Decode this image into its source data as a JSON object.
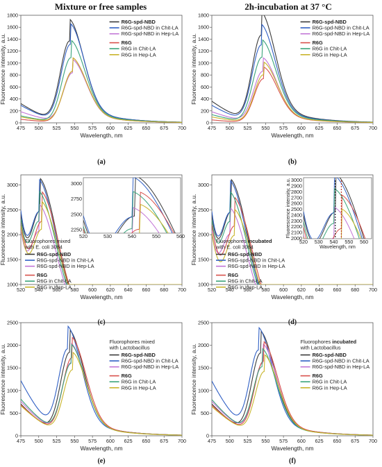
{
  "titles": {
    "left": "Mixture or free samples",
    "right": "2h-incubation at 37 °C"
  },
  "colors": {
    "R6G-spd-NBD": "#3a3a3a",
    "R6G-spd-NBD in Chit-LA": "#2f5fc4",
    "R6G-spd-NBD in Hep-LA": "#c274d6",
    "R6G": "#d8504b",
    "R6G in Chit-LA": "#3aa37a",
    "R6G in Hep-LA": "#c8b42a"
  },
  "chart_data": [
    {
      "type": "line",
      "panel": "a",
      "caption": "(a)",
      "xlabel": "Wavelength, nm",
      "ylabel": "Fluorescence intensity, a.u.",
      "xlim": [
        475,
        700
      ],
      "ylim": [
        0,
        1800
      ],
      "xticks": [
        475,
        500,
        525,
        550,
        575,
        600,
        625,
        650,
        675,
        700
      ],
      "yticks": [
        0,
        200,
        400,
        600,
        800,
        1000,
        1200,
        1400,
        1600,
        1800
      ],
      "legend_groups": [
        [
          "R6G-spd-NBD",
          "R6G-spd-NBD in Chit-LA",
          "R6G-spd-NBD in Hep-LA"
        ],
        [
          "R6G",
          "R6G in Chit-LA",
          "R6G in Hep-LA"
        ]
      ],
      "legend_bold": [
        "R6G-spd-NBD",
        "R6G"
      ],
      "series": [
        {
          "name": "R6G-spd-NBD",
          "peak": 1670,
          "peak_x": 543,
          "base": 330
        },
        {
          "name": "R6G-spd-NBD in Chit-LA",
          "peak": 1600,
          "peak_x": 544,
          "base": 300
        },
        {
          "name": "R6G-spd-NBD in Hep-LA",
          "peak": 1020,
          "peak_x": 547,
          "base": 190
        },
        {
          "name": "R6G",
          "peak": 1050,
          "peak_x": 547,
          "base": 60
        },
        {
          "name": "R6G in Chit-LA",
          "peak": 1330,
          "peak_x": 545,
          "base": 120
        },
        {
          "name": "R6G in Hep-LA",
          "peak": 1050,
          "peak_x": 547,
          "base": 100
        }
      ]
    },
    {
      "type": "line",
      "panel": "b",
      "caption": "(b)",
      "xlabel": "Wavelength, nm",
      "ylabel": "Fluorescence intensity, a.u.",
      "xlim": [
        475,
        700
      ],
      "ylim": [
        0,
        1800
      ],
      "xticks": [
        475,
        500,
        525,
        550,
        575,
        600,
        625,
        650,
        675,
        700
      ],
      "yticks": [
        0,
        200,
        400,
        600,
        800,
        1000,
        1200,
        1400,
        1600,
        1800
      ],
      "legend_groups": [
        [
          "R6G-spd-NBD",
          "R6G-spd-NBD in Chit-LA",
          "R6G-spd-NBD in Hep-LA"
        ],
        [
          "R6G",
          "R6G in Chit-LA",
          "R6G in Hep-LA"
        ]
      ],
      "legend_bold": [
        "R6G-spd-NBD",
        "R6G"
      ],
      "series": [
        {
          "name": "R6G-spd-NBD",
          "peak": 1790,
          "peak_x": 544,
          "base": 370
        },
        {
          "name": "R6G-spd-NBD in Chit-LA",
          "peak": 1590,
          "peak_x": 544,
          "base": 300
        },
        {
          "name": "R6G-spd-NBD in Hep-LA",
          "peak": 1050,
          "peak_x": 546,
          "base": 190
        },
        {
          "name": "R6G",
          "peak": 900,
          "peak_x": 547,
          "base": 50
        },
        {
          "name": "R6G in Chit-LA",
          "peak": 1340,
          "peak_x": 545,
          "base": 140
        },
        {
          "name": "R6G in Hep-LA",
          "peak": 980,
          "peak_x": 547,
          "base": 100
        }
      ]
    },
    {
      "type": "line",
      "panel": "c",
      "caption": "(c)",
      "xlabel": "Wavelength, nm",
      "ylabel": "Fluorescence intensity, a.u.",
      "xlim": [
        520,
        700
      ],
      "ylim": [
        1000,
        3200
      ],
      "xticks": [
        520,
        540,
        560,
        580,
        600,
        620,
        640,
        660,
        680,
        700
      ],
      "yticks": [
        1000,
        1500,
        2000,
        2500,
        3000
      ],
      "note": [
        "Fluorophores mixed",
        "with E. coli 3084"
      ],
      "legend_groups": [
        [
          "R6G-spd-NBD",
          "R6G-spd-NBD in Chit-LA",
          "R6G-spd-NBD in Hep-LA"
        ],
        [
          "R6G",
          "R6G in Chit-LA",
          "R6G in Hep-LA"
        ]
      ],
      "legend_bold": [
        "R6G-spd-NBD",
        "R6G"
      ],
      "series": [
        {
          "name": "R6G-spd-NBD",
          "peak": 3020,
          "peak_x": 541,
          "base": 2570
        },
        {
          "name": "R6G-spd-NBD in Chit-LA",
          "peak": 3000,
          "peak_x": 540,
          "base": 2700
        },
        {
          "name": "R6G-spd-NBD in Hep-LA",
          "peak": 2520,
          "peak_x": 540,
          "base": 2300
        },
        {
          "name": "R6G",
          "peak": 2760,
          "peak_x": 543,
          "base": 2430
        },
        {
          "name": "R6G in Chit-LA",
          "peak": 2770,
          "peak_x": 540,
          "base": 2520
        },
        {
          "name": "R6G in Hep-LA",
          "peak": 2570,
          "peak_x": 543,
          "base": 2350
        }
      ],
      "inset": {
        "xlim": [
          520,
          560
        ],
        "ylim": [
          2200,
          3100
        ],
        "xticks": [
          520,
          530,
          540,
          550,
          560
        ],
        "yticks": [
          2250,
          2500,
          2750,
          3000
        ]
      }
    },
    {
      "type": "line",
      "panel": "d",
      "caption": "(d)",
      "xlabel": "Wavelength, nm",
      "ylabel": "Fluorescence intensity, a.u.",
      "xlim": [
        520,
        700
      ],
      "ylim": [
        1000,
        3200
      ],
      "xticks": [
        520,
        540,
        560,
        580,
        600,
        620,
        640,
        660,
        680,
        700
      ],
      "yticks": [
        1000,
        1500,
        2000,
        2500,
        3000
      ],
      "note": [
        "Fluorophores ",
        "incubated",
        "with E. coli 3084"
      ],
      "legend_groups": [
        [
          "R6G-spd-NBD",
          "R6G-spd-NBD in Chit-LA",
          "R6G-spd-NBD in Hep-LA"
        ],
        [
          "R6G",
          "R6G in Chit-LA",
          "R6G in Hep-LA"
        ]
      ],
      "legend_bold": [
        "R6G-spd-NBD",
        "R6G"
      ],
      "series": [
        {
          "name": "R6G-spd-NBD",
          "peak": 3000,
          "peak_x": 541,
          "base": 2560
        },
        {
          "name": "R6G-spd-NBD in Chit-LA",
          "peak": 2980,
          "peak_x": 540,
          "base": 2680
        },
        {
          "name": "R6G-spd-NBD in Hep-LA",
          "peak": 2450,
          "peak_x": 540,
          "base": 2260
        },
        {
          "name": "R6G",
          "peak": 2650,
          "peak_x": 545,
          "base": 2350
        },
        {
          "name": "R6G in Chit-LA",
          "peak": 2760,
          "peak_x": 540,
          "base": 2500
        },
        {
          "name": "R6G in Hep-LA",
          "peak": 2420,
          "peak_x": 545,
          "base": 2170
        }
      ],
      "inset": {
        "xlim": [
          520,
          565
        ],
        "ylim": [
          2000,
          3050
        ],
        "xticks": [
          520,
          530,
          540,
          550,
          560
        ],
        "yticks": [
          2000,
          2100,
          2200,
          2300,
          2400,
          2500,
          2600,
          2700,
          2800,
          2900,
          3000
        ],
        "xlabel": "Wavelength, nm",
        "ylabel": "Fluorescence intensity, a.u.",
        "markers": [
          541,
          545
        ]
      }
    },
    {
      "type": "line",
      "panel": "e",
      "caption": "(e)",
      "xlabel": "Wavelength, nm",
      "ylabel": "Fluorescence intensity, a.u.",
      "xlim": [
        475,
        700
      ],
      "ylim": [
        0,
        2500
      ],
      "xticks": [
        475,
        500,
        525,
        550,
        575,
        600,
        625,
        650,
        675,
        700
      ],
      "yticks": [
        0,
        500,
        1000,
        1500,
        2000,
        2500
      ],
      "note": [
        "Fluorophores mixed",
        "with Lactobacillus"
      ],
      "legend_groups": [
        [
          "R6G-spd-NBD",
          "R6G-spd-NBD in Chit-LA",
          "R6G-spd-NBD in Hep-LA"
        ],
        [
          "R6G",
          "R6G in Chit-LA",
          "R6G in Hep-LA"
        ]
      ],
      "legend_bold": [
        "R6G-spd-NBD",
        "R6G"
      ],
      "series": [
        {
          "name": "R6G-spd-NBD",
          "peak": 2250,
          "peak_x": 543,
          "base": 720
        },
        {
          "name": "R6G-spd-NBD in Chit-LA",
          "peak": 2340,
          "peak_x": 540,
          "base": 1250
        },
        {
          "name": "R6G-spd-NBD in Hep-LA",
          "peak": 1970,
          "peak_x": 545,
          "base": 780
        },
        {
          "name": "R6G",
          "peak": 2100,
          "peak_x": 546,
          "base": 700
        },
        {
          "name": "R6G in Chit-LA",
          "peak": 1950,
          "peak_x": 545,
          "base": 830
        },
        {
          "name": "R6G in Hep-LA",
          "peak": 1780,
          "peak_x": 547,
          "base": 680
        }
      ]
    },
    {
      "type": "line",
      "panel": "f",
      "caption": "(f)",
      "xlabel": "Wavelength, nm",
      "ylabel": "Fluorescence intensity, a.u.",
      "xlim": [
        475,
        700
      ],
      "ylim": [
        0,
        2500
      ],
      "xticks": [
        475,
        500,
        525,
        550,
        575,
        600,
        625,
        650,
        675,
        700
      ],
      "yticks": [
        0,
        500,
        1000,
        1500,
        2000,
        2500
      ],
      "note": [
        "Fluorophores ",
        "incubated",
        "with Lactobacillus"
      ],
      "legend_groups": [
        [
          "R6G-spd-NBD",
          "R6G-spd-NBD in Chit-LA",
          "R6G-spd-NBD in Hep-LA"
        ],
        [
          "R6G",
          "R6G in Chit-LA",
          "R6G in Hep-LA"
        ]
      ],
      "legend_bold": [
        "R6G-spd-NBD",
        "R6G"
      ],
      "series": [
        {
          "name": "R6G-spd-NBD",
          "peak": 2230,
          "peak_x": 543,
          "base": 720
        },
        {
          "name": "R6G-spd-NBD in Chit-LA",
          "peak": 2310,
          "peak_x": 540,
          "base": 1240
        },
        {
          "name": "R6G-spd-NBD in Hep-LA",
          "peak": 1960,
          "peak_x": 546,
          "base": 780
        },
        {
          "name": "R6G",
          "peak": 2010,
          "peak_x": 547,
          "base": 690
        },
        {
          "name": "R6G in Chit-LA",
          "peak": 1860,
          "peak_x": 545,
          "base": 820
        },
        {
          "name": "R6G in Hep-LA",
          "peak": 1730,
          "peak_x": 548,
          "base": 660
        }
      ]
    }
  ]
}
